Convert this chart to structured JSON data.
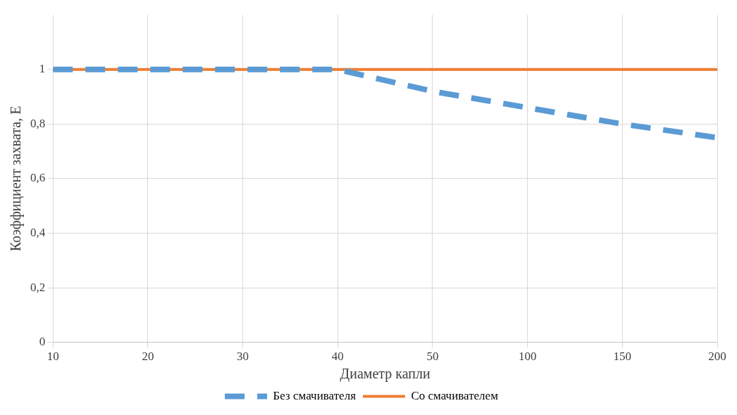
{
  "chart_data": {
    "type": "line",
    "xlabel": "Диаметр капли",
    "ylabel": "Коэффициент захвата, E",
    "categories": [
      "10",
      "20",
      "30",
      "40",
      "50",
      "100",
      "150",
      "200"
    ],
    "series": [
      {
        "name": "Без смачивателя",
        "color": "#5b9bd5",
        "values": [
          1,
          1,
          1,
          1,
          0.92,
          0.86,
          0.8,
          0.75
        ],
        "line_style": "dashed"
      },
      {
        "name": "Со смачивателем",
        "color": "#ed7d31",
        "values": [
          1,
          1,
          1,
          1,
          1,
          1,
          1,
          1
        ],
        "line_style": "solid"
      }
    ],
    "ylim": [
      0,
      1.2
    ],
    "yticks": [
      0,
      {
        "value": 0.2,
        "label": "0,2"
      },
      {
        "value": 0.4,
        "label": "0,4"
      },
      {
        "value": 0.6,
        "label": "0,6"
      },
      {
        "value": 0.8,
        "label": "0,8"
      },
      1
    ],
    "grid": true,
    "legend": "bottom",
    "marker": "none"
  }
}
